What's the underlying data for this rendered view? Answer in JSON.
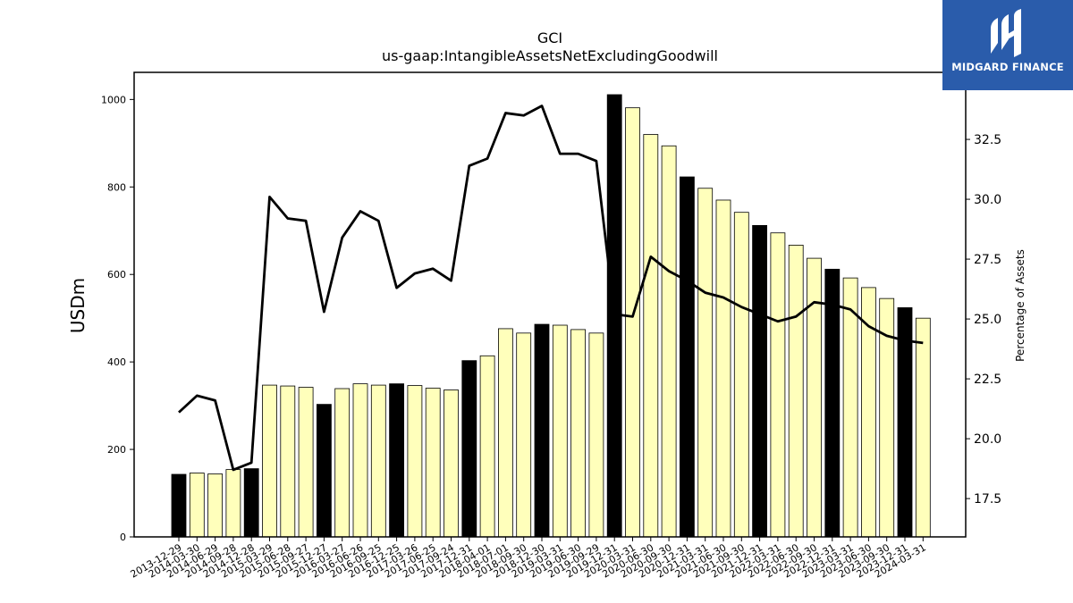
{
  "chart_data": {
    "type": "bar+line",
    "title": "GCI",
    "subtitle": "us-gaap:IntangibleAssetsNetExcludingGoodwill",
    "ylabel": "USDm",
    "y2label": "Percentage of Assets",
    "ylim": [
      0,
      1062
    ],
    "y2lim": [
      15.9,
      35.3
    ],
    "yticks": [
      0,
      200,
      400,
      600,
      800,
      1000
    ],
    "y2ticks": [
      17.5,
      20.0,
      22.5,
      25.0,
      27.5,
      30.0,
      32.5
    ],
    "y2tick_labels": [
      "17.5",
      "20.0",
      "22.5",
      "25.0",
      "27.5",
      "30.0",
      "32.5"
    ],
    "categories": [
      "2013-12-29",
      "2014-03-30",
      "2014-06-29",
      "2014-09-28",
      "2014-12-28",
      "2015-03-29",
      "2015-06-28",
      "2015-09-27",
      "2015-12-27",
      "2016-03-27",
      "2016-06-26",
      "2016-09-25",
      "2016-12-25",
      "2017-03-26",
      "2017-06-25",
      "2017-09-24",
      "2017-12-31",
      "2018-04-01",
      "2018-07-01",
      "2018-09-30",
      "2018-12-30",
      "2019-03-31",
      "2019-06-30",
      "2019-09-29",
      "2019-12-31",
      "2020-03-31",
      "2020-06-30",
      "2020-09-30",
      "2020-12-31",
      "2021-03-31",
      "2021-06-30",
      "2021-09-30",
      "2021-12-31",
      "2022-03-31",
      "2022-06-30",
      "2022-09-30",
      "2022-12-31",
      "2023-03-31",
      "2023-06-30",
      "2023-09-30",
      "2023-12-31",
      "2024-03-31"
    ],
    "series": [
      {
        "kind": "bar",
        "values": [
          143,
          146,
          144,
          154,
          156,
          347,
          345,
          342,
          303,
          339,
          350,
          347,
          350,
          346,
          340,
          336,
          403,
          414,
          476,
          466,
          486,
          484,
          474,
          466,
          1011,
          981,
          920,
          894,
          823,
          797,
          770,
          742,
          712,
          695,
          667,
          637,
          612,
          592,
          570,
          545,
          524,
          500
        ],
        "highlight": [
          true,
          false,
          false,
          false,
          true,
          false,
          false,
          false,
          true,
          false,
          false,
          false,
          true,
          false,
          false,
          false,
          true,
          false,
          false,
          false,
          true,
          false,
          false,
          false,
          true,
          false,
          false,
          false,
          true,
          false,
          false,
          false,
          true,
          false,
          false,
          false,
          true,
          false,
          false,
          false,
          true,
          false
        ]
      },
      {
        "kind": "line",
        "axis": "right",
        "values": [
          21.1,
          21.8,
          21.6,
          18.7,
          19.0,
          30.1,
          29.2,
          29.1,
          25.3,
          28.4,
          29.5,
          29.1,
          26.3,
          26.9,
          27.1,
          26.6,
          31.4,
          31.7,
          33.6,
          33.5,
          33.9,
          31.9,
          31.9,
          31.6,
          25.2,
          25.1,
          27.6,
          27.0,
          26.6,
          26.1,
          25.9,
          25.5,
          25.2,
          24.9,
          25.1,
          25.7,
          25.6,
          25.4,
          24.7,
          24.3,
          24.1,
          24.0
        ]
      }
    ],
    "colors": {
      "bar": "#ffffbb",
      "bar_highlight": "#000000",
      "bar_edge": "#000000",
      "line": "#000000"
    },
    "grid": false
  },
  "logo": {
    "text": "MIDGARD FINANCE",
    "color": "#2a5cab"
  }
}
